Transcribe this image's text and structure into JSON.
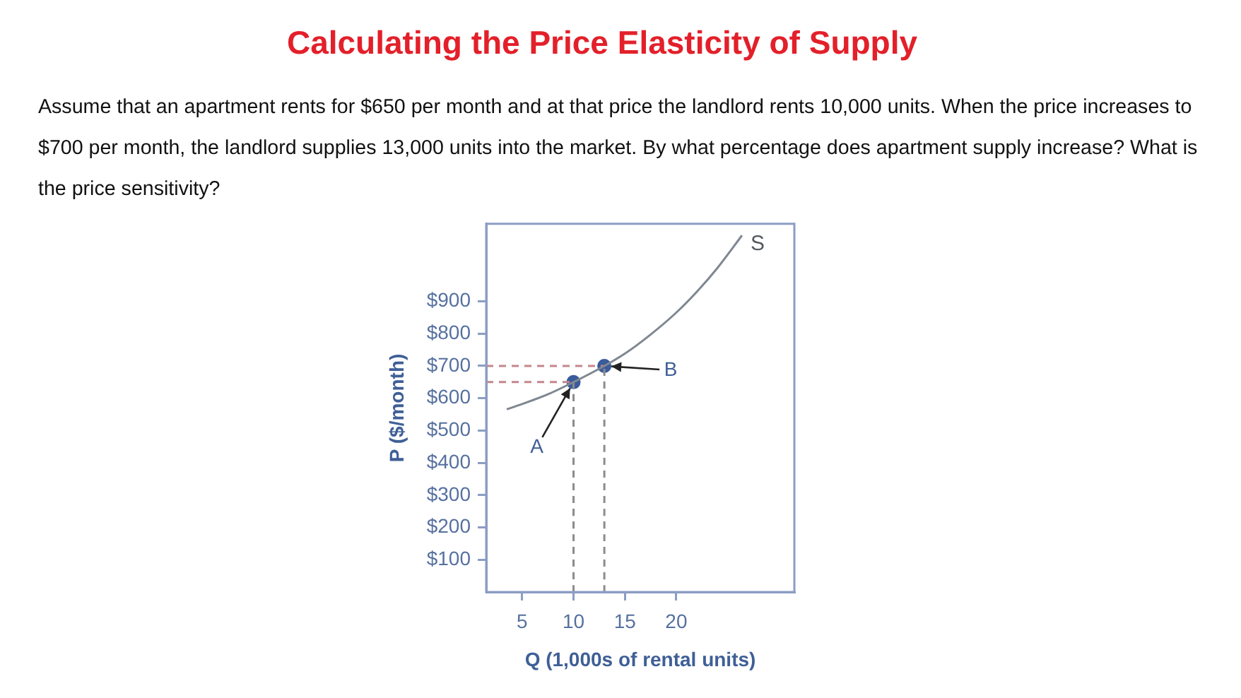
{
  "chart_data": {
    "type": "line",
    "title": "Calculating the Price Elasticity of Supply",
    "subtitle": "Assume that an apartment rents for $650 per month and at that price the landlord rents 10,000 units. When the price increases to $700 per month, the landlord supplies 13,000 units into the market. By what percentage does apartment supply increase? What is the price sensitivity?",
    "xlabel": "Q (1,000s of rental units)",
    "ylabel": "P ($/month)",
    "xlim": [
      1.5,
      31.5
    ],
    "ylim": [
      0,
      1140
    ],
    "xticks": [
      5,
      10,
      15,
      20
    ],
    "yticks": [
      {
        "value": 100,
        "label": "$100"
      },
      {
        "value": 200,
        "label": "$200"
      },
      {
        "value": 300,
        "label": "$300"
      },
      {
        "value": 400,
        "label": "$400"
      },
      {
        "value": 500,
        "label": "$500"
      },
      {
        "value": 600,
        "label": "$600"
      },
      {
        "value": 700,
        "label": "$700"
      },
      {
        "value": 800,
        "label": "$800"
      },
      {
        "value": 900,
        "label": "$900"
      }
    ],
    "grid": false,
    "legend": false,
    "series": [
      {
        "name": "S",
        "color": "#7f8791",
        "marker": "none",
        "line_style": "solid",
        "x": [
          3.5,
          5,
          7.5,
          10,
          13,
          15,
          17.5,
          20,
          22.1,
          24,
          26.4
        ],
        "values": [
          566,
          582,
          612,
          650,
          700,
          738,
          797,
          865,
          933,
          1003,
          1104
        ]
      },
      {
        "color": "#c4868c",
        "marker": "none",
        "line_style": "dashed",
        "x": [
          1.5,
          13
        ],
        "values": [
          700,
          700
        ]
      },
      {
        "color": "#c4868c",
        "marker": "none",
        "line_style": "dashed",
        "x": [
          1.5,
          10
        ],
        "values": [
          650,
          650
        ]
      },
      {
        "color": "#8c8c8c",
        "marker": "none",
        "line_style": "dashed",
        "x": [
          10,
          10
        ],
        "values": [
          0,
          650
        ]
      },
      {
        "color": "#8c8c8c",
        "marker": "none",
        "line_style": "dashed",
        "x": [
          13,
          13
        ],
        "values": [
          0,
          700
        ]
      },
      {
        "type": "scatter",
        "color": "#3a5b9c",
        "marker": "circle",
        "x": [
          10,
          13
        ],
        "values": [
          650,
          700
        ]
      }
    ],
    "annotations": [
      {
        "text": "A",
        "x": 10,
        "y": 650
      },
      {
        "text": "B",
        "x": 13,
        "y": 700
      }
    ]
  }
}
